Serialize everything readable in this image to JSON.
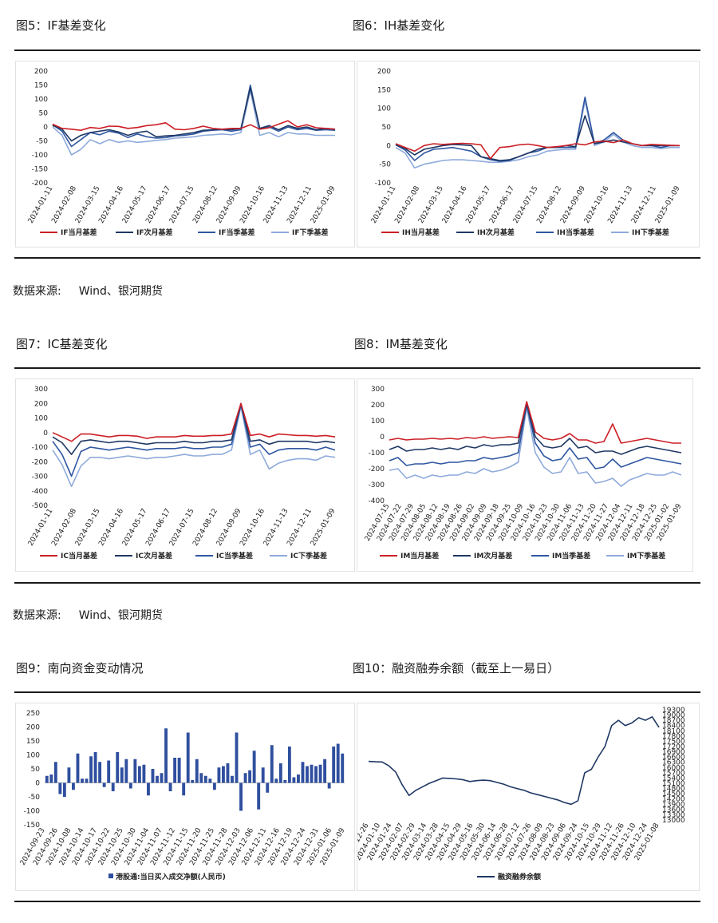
{
  "titles": {
    "fig5": "图5：IF基差变化",
    "fig6": "图6：IH基差变化",
    "fig7": "图7：IC基差变化",
    "fig8": "图8：IM基差变化",
    "fig9": "图9：南向资金变动情况",
    "fig10": "图10：融资融券余额（截至上一易日）"
  },
  "source": {
    "label": "数据来源:",
    "text": "Wind、银河期货"
  },
  "colors": {
    "red": "#cc1f26",
    "navy": "#1f3864",
    "blue": "#2f56a0",
    "light": "#8eaadb",
    "bar": "#2f4f9e"
  },
  "chart_data": [
    {
      "id": "if",
      "type": "line",
      "yticks": [
        200,
        150,
        100,
        50,
        0,
        -50,
        -100,
        -150,
        -200
      ],
      "ylim": [
        -200,
        200
      ],
      "xticks": [
        "2024-01-11",
        "2024-02-08",
        "2024-03-15",
        "2024-04-16",
        "2024-05-17",
        "2024-06-17",
        "2024-07-15",
        "2024-08-12",
        "2024-09-09",
        "2024-10-16",
        "2024-11-13",
        "2024-12-11",
        "2025-01-09"
      ],
      "series": [
        {
          "name": "IF当月基差",
          "color": "red",
          "values": [
            10,
            -5,
            -8,
            -12,
            -2,
            -5,
            3,
            2,
            -5,
            -2,
            5,
            8,
            15,
            -8,
            -10,
            -5,
            3,
            -5,
            -8,
            -5,
            -5,
            8,
            -8,
            -3,
            10,
            22,
            0,
            8,
            -3,
            -5,
            -8
          ]
        },
        {
          "name": "IF次月基差",
          "color": "navy",
          "values": [
            5,
            -8,
            -50,
            -30,
            -20,
            -15,
            -10,
            -18,
            -30,
            -20,
            -15,
            -35,
            -32,
            -30,
            -25,
            -20,
            -12,
            -10,
            -8,
            -10,
            -5,
            140,
            -5,
            5,
            -10,
            5,
            -5,
            0,
            -10,
            -5,
            -8
          ]
        },
        {
          "name": "IF当季基差",
          "color": "blue",
          "values": [
            8,
            -15,
            -70,
            -45,
            -20,
            -28,
            -15,
            -22,
            -38,
            -25,
            -35,
            -40,
            -38,
            -32,
            -30,
            -25,
            -15,
            -12,
            -10,
            -15,
            -10,
            150,
            -8,
            0,
            -15,
            0,
            -10,
            -5,
            -12,
            -10,
            -12
          ]
        },
        {
          "name": "IF下季基差",
          "color": "light",
          "values": [
            0,
            -30,
            -100,
            -80,
            -45,
            -60,
            -45,
            -55,
            -50,
            -55,
            -52,
            -48,
            -45,
            -40,
            -38,
            -35,
            -30,
            -28,
            -25,
            -28,
            -20,
            130,
            -30,
            -20,
            -35,
            -20,
            -25,
            -25,
            -30,
            -30,
            -30
          ]
        }
      ]
    },
    {
      "id": "ih",
      "type": "line",
      "yticks": [
        200,
        150,
        100,
        50,
        0,
        -50,
        -100
      ],
      "ylim": [
        -100,
        200
      ],
      "xticks": [
        "2024-01-11",
        "2024-02-08",
        "2024-03-15",
        "2024-04-16",
        "2024-05-17",
        "2024-06-17",
        "2024-07-15",
        "2024-08-12",
        "2024-09-09",
        "2024-10-16",
        "2024-11-13",
        "2024-12-11",
        "2025-01-09"
      ],
      "series": [
        {
          "name": "IH当月基差",
          "color": "red",
          "values": [
            5,
            -5,
            -15,
            0,
            5,
            3,
            5,
            6,
            5,
            2,
            -35,
            -5,
            -3,
            2,
            4,
            0,
            -5,
            -3,
            0,
            5,
            2,
            10,
            12,
            8,
            15,
            5,
            0,
            3,
            2,
            1,
            0
          ]
        },
        {
          "name": "IH次月基差",
          "color": "navy",
          "values": [
            3,
            -8,
            -25,
            -10,
            -5,
            0,
            3,
            2,
            0,
            -30,
            -35,
            -40,
            -38,
            -30,
            -20,
            -10,
            -5,
            -5,
            0,
            -3,
            80,
            5,
            10,
            15,
            10,
            5,
            0,
            0,
            0,
            0,
            0
          ]
        },
        {
          "name": "IH当季基差",
          "color": "blue",
          "values": [
            2,
            -12,
            -40,
            -20,
            -10,
            -8,
            -5,
            -10,
            -15,
            -30,
            -38,
            -42,
            -40,
            -30,
            -20,
            -15,
            -5,
            -5,
            -5,
            -5,
            130,
            5,
            15,
            35,
            15,
            5,
            0,
            0,
            -5,
            0,
            0
          ]
        },
        {
          "name": "IH下季基差",
          "color": "light",
          "values": [
            -5,
            -20,
            -60,
            -50,
            -45,
            -40,
            -38,
            -38,
            -40,
            -42,
            -45,
            -45,
            -42,
            -38,
            -30,
            -25,
            -15,
            -12,
            -10,
            -10,
            120,
            0,
            10,
            30,
            10,
            0,
            -5,
            -5,
            -8,
            -5,
            -5
          ]
        }
      ]
    },
    {
      "id": "ic",
      "type": "line",
      "yticks": [
        300,
        200,
        100,
        0,
        -100,
        -200,
        -300,
        -400,
        -500
      ],
      "ylim": [
        -500,
        300
      ],
      "xticks": [
        "2024-01-11",
        "2024-02-08",
        "2024-03-15",
        "2024-04-16",
        "2024-05-17",
        "2024-06-17",
        "2024-07-15",
        "2024-08-12",
        "2024-09-09",
        "2024-10-16",
        "2024-11-13",
        "2024-12-11",
        "2025-01-09"
      ],
      "series": [
        {
          "name": "IC当月基差",
          "color": "red",
          "values": [
            0,
            -30,
            -60,
            -10,
            -10,
            -20,
            -30,
            -20,
            -20,
            -25,
            -40,
            -30,
            -30,
            -30,
            -20,
            -25,
            -25,
            -20,
            -20,
            -10,
            200,
            -20,
            -10,
            -30,
            -10,
            -15,
            -20,
            -20,
            -25,
            -20,
            -30
          ]
        },
        {
          "name": "IC次月基差",
          "color": "navy",
          "values": [
            -30,
            -70,
            -150,
            -60,
            -50,
            -60,
            -70,
            -60,
            -60,
            -70,
            -80,
            -70,
            -70,
            -70,
            -60,
            -70,
            -70,
            -60,
            -60,
            -50,
            200,
            -60,
            -50,
            -80,
            -60,
            -60,
            -60,
            -60,
            -70,
            -60,
            -70
          ]
        },
        {
          "name": "IC当季基差",
          "color": "blue",
          "values": [
            -60,
            -150,
            -300,
            -130,
            -100,
            -110,
            -120,
            -110,
            -100,
            -110,
            -120,
            -110,
            -110,
            -110,
            -100,
            -110,
            -110,
            -100,
            -100,
            -80,
            190,
            -100,
            -80,
            -150,
            -120,
            -110,
            -110,
            -110,
            -120,
            -100,
            -120
          ]
        },
        {
          "name": "IC下季基差",
          "color": "light",
          "values": [
            -120,
            -220,
            -370,
            -230,
            -170,
            -170,
            -180,
            -170,
            -160,
            -170,
            -180,
            -170,
            -170,
            -160,
            -150,
            -160,
            -160,
            -150,
            -150,
            -120,
            180,
            -150,
            -120,
            -250,
            -210,
            -190,
            -180,
            -180,
            -190,
            -160,
            -170
          ]
        }
      ]
    },
    {
      "id": "im",
      "type": "line",
      "yticks": [
        300,
        200,
        100,
        0,
        -100,
        -200,
        -300,
        -400
      ],
      "ylim": [
        -400,
        300
      ],
      "xticks": [
        "2024-07-15",
        "2024-07-22",
        "2024-07-29",
        "2024-08-05",
        "2024-08-12",
        "2024-08-19",
        "2024-08-26",
        "2024-09-02",
        "2024-09-09",
        "2024-09-18",
        "2024-09-25",
        "2024-10-09",
        "2024-10-16",
        "2024-10-23",
        "2024-10-30",
        "2024-11-06",
        "2024-11-13",
        "2024-11-20",
        "2024-11-27",
        "2024-12-04",
        "2024-12-11",
        "2024-12-18",
        "2024-12-25",
        "2025-01-02",
        "2025-01-09"
      ],
      "series": [
        {
          "name": "IM当月基差",
          "color": "red",
          "values": [
            -20,
            -10,
            -20,
            -15,
            -15,
            -10,
            -15,
            -10,
            -15,
            -5,
            -10,
            0,
            -10,
            -5,
            0,
            -5,
            220,
            30,
            -10,
            -20,
            -10,
            20,
            -20,
            -20,
            -40,
            -30,
            80,
            -40,
            -30,
            -20,
            -10,
            -20,
            -30,
            -40,
            -40
          ]
        },
        {
          "name": "IM次月基差",
          "color": "navy",
          "values": [
            -80,
            -60,
            -90,
            -80,
            -80,
            -70,
            -80,
            -70,
            -80,
            -60,
            -70,
            -50,
            -60,
            -50,
            -50,
            -40,
            210,
            0,
            -60,
            -70,
            -60,
            -10,
            -70,
            -60,
            -100,
            -90,
            -90,
            -110,
            -90,
            -70,
            -60,
            -70,
            -80,
            -90,
            -100
          ]
        },
        {
          "name": "IM当季基差",
          "color": "blue",
          "values": [
            -150,
            -130,
            -180,
            -170,
            -170,
            -160,
            -170,
            -160,
            -160,
            -150,
            -150,
            -130,
            -140,
            -130,
            -120,
            -100,
            200,
            -40,
            -120,
            -150,
            -140,
            -70,
            -140,
            -130,
            -200,
            -190,
            -140,
            -190,
            -170,
            -150,
            -130,
            -140,
            -150,
            -160,
            -170
          ]
        },
        {
          "name": "IM下季基差",
          "color": "light",
          "values": [
            -210,
            -200,
            -260,
            -240,
            -260,
            -240,
            -250,
            -240,
            -240,
            -220,
            -230,
            -200,
            -220,
            -210,
            -190,
            -160,
            180,
            -100,
            -190,
            -230,
            -220,
            -130,
            -230,
            -220,
            -290,
            -280,
            -260,
            -310,
            -270,
            -250,
            -230,
            -240,
            -240,
            -220,
            -240
          ]
        }
      ]
    },
    {
      "id": "sb",
      "type": "bar",
      "yticks": [
        250,
        200,
        150,
        100,
        50,
        0,
        -50,
        -100,
        -150
      ],
      "ylim": [
        -150,
        250
      ],
      "xticks": [
        "2024-09-23",
        "2024-09-26",
        "2024-10-08",
        "2024-10-14",
        "2024-10-17",
        "2024-10-22",
        "2024-10-25",
        "2024-10-30",
        "2024-11-04",
        "2024-11-07",
        "2024-11-12",
        "2024-11-15",
        "2024-11-20",
        "2024-11-25",
        "2024-11-28",
        "2024-12-03",
        "2024-12-06",
        "2024-12-11",
        "2024-12-16",
        "2024-12-19",
        "2024-12-24",
        "2024-12-31",
        "2025-01-06",
        "2025-01-09"
      ],
      "series": [
        {
          "name": "港股通:当日买入成交净额(人民币)",
          "color": "bar",
          "values": [
            25,
            30,
            75,
            -40,
            -50,
            55,
            -25,
            105,
            15,
            15,
            95,
            110,
            75,
            -15,
            80,
            -30,
            110,
            55,
            85,
            -20,
            85,
            60,
            65,
            -45,
            50,
            25,
            35,
            195,
            -30,
            90,
            90,
            -45,
            180,
            10,
            85,
            35,
            25,
            15,
            -25,
            55,
            60,
            70,
            25,
            180,
            -100,
            35,
            45,
            115,
            -95,
            55,
            -35,
            135,
            15,
            70,
            10,
            130,
            20,
            30,
            75,
            60,
            65,
            60,
            65,
            85,
            -20,
            130,
            140,
            105
          ]
        }
      ]
    },
    {
      "id": "mt",
      "type": "line",
      "yticks": [
        19300,
        19000,
        18700,
        18400,
        18100,
        17800,
        17500,
        17200,
        16900,
        16600,
        16300,
        16000,
        15700,
        15400,
        15100,
        14800,
        14500,
        14200,
        13900,
        13600,
        13300,
        13000
      ],
      "ylim": [
        13000,
        19300
      ],
      "xticks": [
        "2023-12-26",
        "2024-01-10",
        "2024-01-24",
        "2024-02-07",
        "2024-02-29",
        "2024-03-14",
        "2024-03-28",
        "2024-04-15",
        "2024-04-29",
        "2024-05-16",
        "2024-05-30",
        "2024-06-14",
        "2024-06-28",
        "2024-07-12",
        "2024-07-26",
        "2024-08-09",
        "2024-08-23",
        "2024-09-06",
        "2024-09-24",
        "2024-10-15",
        "2024-10-29",
        "2024-11-12",
        "2024-11-26",
        "2024-12-10",
        "2024-12-24",
        "2025-01-08"
      ],
      "series": [
        {
          "name": "融资融券余额",
          "color": "navy",
          "values": [
            16350,
            16330,
            16320,
            16100,
            15750,
            15000,
            14400,
            14700,
            14900,
            15100,
            15250,
            15400,
            15380,
            15350,
            15300,
            15200,
            15250,
            15280,
            15250,
            15150,
            15050,
            14900,
            14800,
            14700,
            14550,
            14450,
            14350,
            14250,
            14150,
            14000,
            13900,
            14100,
            15700,
            15900,
            16600,
            17200,
            18400,
            18700,
            18400,
            18550,
            18850,
            18700,
            18900,
            18300
          ]
        }
      ]
    }
  ]
}
